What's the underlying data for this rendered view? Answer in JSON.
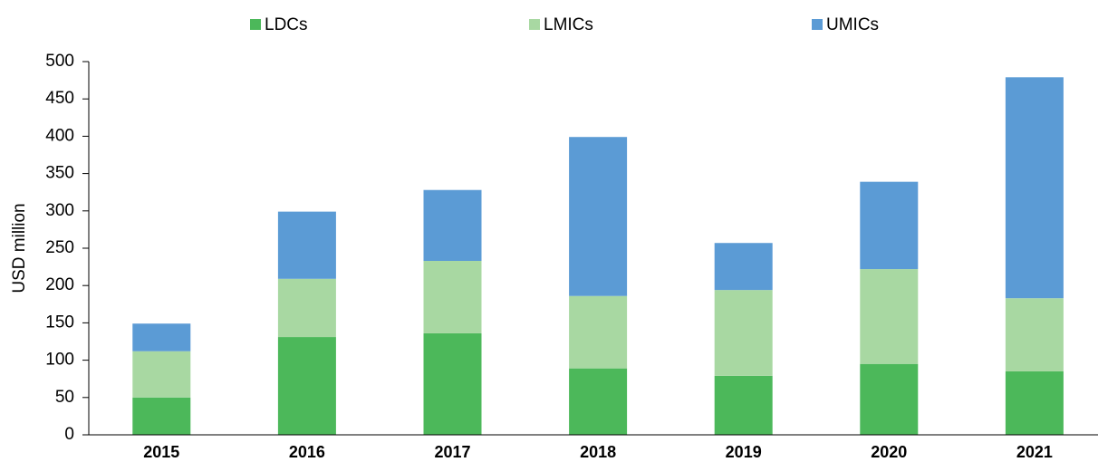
{
  "chart_data": {
    "type": "stacked_bar",
    "y_label": "USD million",
    "categories": [
      "2015",
      "2016",
      "2017",
      "2018",
      "2019",
      "2020",
      "2021"
    ],
    "series": [
      {
        "name": "LDCs",
        "color": "#4cb85a",
        "values": [
          50,
          131,
          136,
          89,
          79,
          95,
          85
        ]
      },
      {
        "name": "LMICs",
        "color": "#a8d8a2",
        "values": [
          62,
          78,
          97,
          97,
          115,
          127,
          98
        ]
      },
      {
        "name": "UMICs",
        "color": "#5b9bd5",
        "values": [
          37,
          90,
          95,
          213,
          63,
          117,
          296
        ]
      }
    ],
    "ylim": [
      0,
      500
    ],
    "yticks": [
      0,
      50,
      100,
      150,
      200,
      250,
      300,
      350,
      400,
      450,
      500
    ],
    "legend": "top"
  }
}
